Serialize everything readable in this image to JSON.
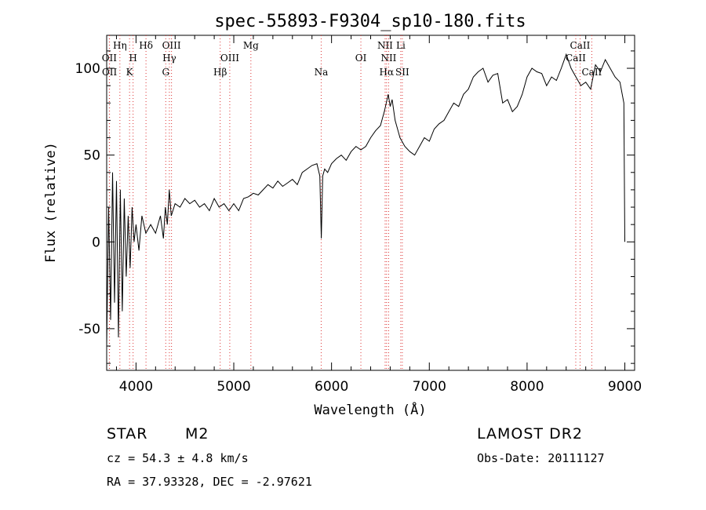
{
  "chart_data": {
    "type": "line",
    "title": "spec-55893-F9304_sp10-180.fits",
    "xlabel": "Wavelength (Å)",
    "ylabel": "Flux (relative)",
    "xlim": [
      3700,
      9100
    ],
    "ylim": [
      -74,
      119
    ],
    "xticks": [
      4000,
      5000,
      6000,
      7000,
      8000,
      9000
    ],
    "yticks": [
      -50,
      0,
      50,
      100
    ],
    "grid": false,
    "series": [
      {
        "x": [
          3700,
          3720,
          3740,
          3760,
          3780,
          3800,
          3820,
          3840,
          3860,
          3880,
          3900,
          3920,
          3940,
          3960,
          3980,
          4000,
          4030,
          4060,
          4100,
          4150,
          4200,
          4250,
          4280,
          4300,
          4320,
          4340,
          4360,
          4400,
          4450,
          4500,
          4550,
          4600,
          4650,
          4700,
          4750,
          4800,
          4850,
          4900,
          4950,
          5000,
          5050,
          5100,
          5150,
          5200,
          5250,
          5300,
          5350,
          5400,
          5450,
          5500,
          5550,
          5600,
          5650,
          5700,
          5750,
          5800,
          5850,
          5880,
          5895,
          5910,
          5930,
          5960,
          6000,
          6050,
          6100,
          6150,
          6200,
          6250,
          6300,
          6350,
          6400,
          6450,
          6500,
          6540,
          6560,
          6580,
          6600,
          6620,
          6650,
          6700,
          6750,
          6800,
          6850,
          6900,
          6950,
          7000,
          7050,
          7100,
          7150,
          7200,
          7250,
          7300,
          7350,
          7400,
          7450,
          7500,
          7550,
          7600,
          7650,
          7700,
          7750,
          7800,
          7850,
          7900,
          7950,
          8000,
          8050,
          8100,
          8150,
          8200,
          8250,
          8300,
          8350,
          8400,
          8450,
          8500,
          8550,
          8600,
          8650,
          8700,
          8750,
          8800,
          8850,
          8900,
          8950,
          8990,
          9000
        ],
        "y": [
          -60,
          20,
          -45,
          40,
          -35,
          35,
          -55,
          30,
          -40,
          25,
          -20,
          15,
          -15,
          20,
          0,
          10,
          -5,
          15,
          5,
          10,
          5,
          15,
          2,
          20,
          10,
          30,
          15,
          22,
          20,
          25,
          22,
          24,
          20,
          22,
          18,
          25,
          20,
          22,
          18,
          22,
          18,
          25,
          26,
          28,
          27,
          30,
          33,
          31,
          35,
          32,
          34,
          36,
          33,
          40,
          42,
          44,
          45,
          38,
          2,
          38,
          42,
          40,
          45,
          48,
          50,
          47,
          52,
          55,
          53,
          55,
          60,
          64,
          67,
          75,
          80,
          85,
          78,
          82,
          70,
          60,
          55,
          52,
          50,
          55,
          60,
          58,
          65,
          68,
          70,
          75,
          80,
          78,
          85,
          88,
          95,
          98,
          100,
          92,
          96,
          97,
          80,
          82,
          75,
          78,
          85,
          95,
          100,
          98,
          97,
          90,
          95,
          93,
          100,
          108,
          100,
          95,
          90,
          92,
          88,
          102,
          98,
          105,
          100,
          95,
          92,
          80,
          0
        ]
      }
    ],
    "spectral_lines": [
      {
        "label": "OII",
        "x": 3727,
        "row": 2
      },
      {
        "label": "OII",
        "x": 3729,
        "row": 3
      },
      {
        "label": "Hη",
        "x": 3835,
        "row": 1
      },
      {
        "label": "H",
        "x": 3970,
        "row": 2
      },
      {
        "label": "K",
        "x": 3934,
        "row": 3
      },
      {
        "label": "Hδ",
        "x": 4102,
        "row": 1
      },
      {
        "label": "OIII",
        "x": 4363,
        "row": 1
      },
      {
        "label": "Hγ",
        "x": 4341,
        "row": 2
      },
      {
        "label": "G",
        "x": 4304,
        "row": 3
      },
      {
        "label": "Hβ",
        "x": 4861,
        "row": 3
      },
      {
        "label": "OIII",
        "x": 4959,
        "row": 2
      },
      {
        "label": "Mg",
        "x": 5175,
        "row": 1
      },
      {
        "label": "Na",
        "x": 5894,
        "row": 3
      },
      {
        "label": "OI",
        "x": 6300,
        "row": 2
      },
      {
        "label": "NII",
        "x": 6548,
        "row": 1
      },
      {
        "label": "NII",
        "x": 6584,
        "row": 2
      },
      {
        "label": "Hα",
        "x": 6563,
        "row": 3
      },
      {
        "label": "Li",
        "x": 6708,
        "row": 1
      },
      {
        "label": "SII",
        "x": 6724,
        "row": 3
      },
      {
        "label": "CaII",
        "x": 8542,
        "row": 1
      },
      {
        "label": "CaII",
        "x": 8498,
        "row": 2
      },
      {
        "label": "CaII",
        "x": 8662,
        "row": 3
      }
    ]
  },
  "footer": {
    "object_type": "STAR",
    "subclass": "M2",
    "survey": "LAMOST DR2",
    "cz": "cz = 54.3 ± 4.8 km/s",
    "obs_date": "Obs-Date: 20111127",
    "coords": "RA =  37.93328, DEC =  -2.97621"
  }
}
